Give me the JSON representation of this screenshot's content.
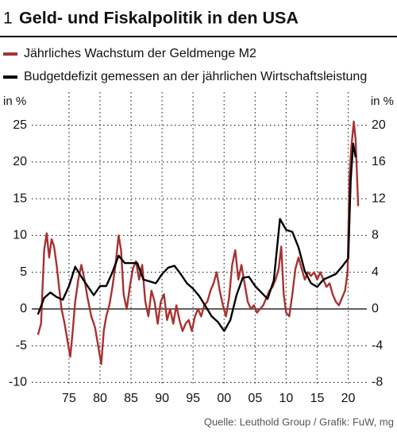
{
  "chart_data": {
    "type": "line",
    "number": "1",
    "title": "Geld- und Fiskalpolitik in den USA",
    "y_label": "in %",
    "y2_label": "in %",
    "source": "Quelle: Leuthold Group / Grafik: FuW, mg",
    "xlim": [
      1969,
      2023
    ],
    "xticks": [
      {
        "value": 1975,
        "label": "75"
      },
      {
        "value": 1980,
        "label": "80"
      },
      {
        "value": 1985,
        "label": "85"
      },
      {
        "value": 1990,
        "label": "90"
      },
      {
        "value": 1995,
        "label": "95"
      },
      {
        "value": 2000,
        "label": "00"
      },
      {
        "value": 2005,
        "label": "05"
      },
      {
        "value": 2010,
        "label": "10"
      },
      {
        "value": 2015,
        "label": "15"
      },
      {
        "value": 2020,
        "label": "20"
      }
    ],
    "ylim": [
      -10.5,
      29.5
    ],
    "yticks": [
      -10,
      -5,
      0,
      5,
      10,
      15,
      20,
      25
    ],
    "y2lim": [
      -8.4,
      23.6
    ],
    "y2ticks": [
      -8,
      -4,
      0,
      4,
      8,
      12,
      16,
      20
    ],
    "grid": true,
    "series": [
      {
        "name": "Jährliches Wachstum der Geldmenge M2",
        "color": "#a83232",
        "x": [
          1970.0,
          1970.5,
          1971.0,
          1971.4,
          1971.8,
          1972.2,
          1972.6,
          1973.0,
          1973.4,
          1973.8,
          1974.3,
          1974.8,
          1975.2,
          1975.6,
          1976.0,
          1976.5,
          1977.0,
          1977.5,
          1978.0,
          1978.6,
          1979.2,
          1979.7,
          1980.2,
          1980.6,
          1981.0,
          1981.5,
          1982.0,
          1982.5,
          1983.0,
          1983.4,
          1983.8,
          1984.3,
          1984.8,
          1985.3,
          1985.8,
          1986.3,
          1986.8,
          1987.3,
          1987.8,
          1988.3,
          1988.8,
          1989.3,
          1989.8,
          1990.3,
          1990.8,
          1991.3,
          1991.8,
          1992.3,
          1992.8,
          1993.3,
          1993.8,
          1994.3,
          1994.8,
          1995.3,
          1995.8,
          1996.3,
          1996.8,
          1997.3,
          1997.8,
          1998.3,
          1998.8,
          1999.3,
          1999.8,
          2000.3,
          2000.8,
          2001.3,
          2001.8,
          2002.3,
          2002.8,
          2003.3,
          2003.8,
          2004.3,
          2004.8,
          2005.3,
          2005.8,
          2006.3,
          2006.8,
          2007.3,
          2007.8,
          2008.3,
          2008.8,
          2009.2,
          2009.6,
          2010.0,
          2010.5,
          2011.0,
          2011.5,
          2012.0,
          2012.5,
          2013.0,
          2013.5,
          2014.0,
          2014.5,
          2015.0,
          2015.5,
          2016.0,
          2016.5,
          2017.0,
          2017.5,
          2018.0,
          2018.5,
          2019.0,
          2019.5,
          2019.9,
          2020.2,
          2020.5,
          2020.9,
          2021.2,
          2021.6
        ],
        "values": [
          -3.5,
          -2,
          8,
          10.3,
          7,
          9.5,
          8.5,
          6,
          3,
          0,
          -2,
          -4.5,
          -6.5,
          -3,
          1,
          4,
          6,
          4,
          1.5,
          -1,
          -2.5,
          -5,
          -7.5,
          -3,
          -1,
          0.5,
          3,
          6,
          10,
          8,
          2,
          0,
          3,
          5.5,
          6.5,
          4,
          6,
          1,
          -1,
          2.5,
          1,
          -2,
          1,
          2,
          -1.5,
          0,
          -2,
          0.5,
          -1.5,
          -3,
          -2,
          -1.5,
          -3,
          -1,
          0,
          -1,
          0.5,
          1,
          2.5,
          3.5,
          5,
          2.5,
          0.5,
          -1,
          1.5,
          6,
          8,
          4,
          6,
          3.5,
          1,
          0,
          0.5,
          -0.5,
          0,
          0.5,
          1.5,
          2.5,
          3,
          4,
          5.5,
          8.5,
          2,
          -0.5,
          -1,
          2,
          5.5,
          7,
          5.5,
          4,
          5,
          4.5,
          5,
          4,
          5,
          4,
          3,
          3.5,
          2,
          1,
          0.5,
          1.5,
          2.5,
          5,
          18,
          22,
          25.5,
          23,
          14
        ]
      },
      {
        "name": "Budgetdefizit gemessen an der jährlichen Wirtschaftsleistung",
        "color": "#000000",
        "axis": "y2",
        "x": [
          1970.0,
          1971.0,
          1972.0,
          1973.0,
          1974.0,
          1975.0,
          1976.0,
          1977.0,
          1978.0,
          1979.0,
          1980.0,
          1981.0,
          1982.0,
          1983.0,
          1984.0,
          1985.0,
          1986.0,
          1987.0,
          1988.0,
          1989.0,
          1990.0,
          1991.0,
          1992.0,
          1993.0,
          1994.0,
          1995.0,
          1996.0,
          1997.0,
          1998.0,
          1999.0,
          2000.0,
          2001.0,
          2002.0,
          2003.0,
          2004.0,
          2005.0,
          2006.0,
          2007.0,
          2008.0,
          2009.0,
          2010.0,
          2011.0,
          2012.0,
          2013.0,
          2014.0,
          2015.0,
          2016.0,
          2017.0,
          2018.0,
          2019.0,
          2020.0,
          2020.4,
          2020.8,
          2021.2
        ],
        "values": [
          -0.6,
          1.2,
          1.8,
          1.3,
          1.0,
          2.5,
          4.6,
          3.5,
          2.5,
          1.5,
          2.5,
          2.5,
          4.0,
          5.8,
          5.0,
          5.0,
          5.0,
          3.2,
          3.0,
          2.8,
          3.8,
          4.5,
          4.7,
          3.8,
          2.8,
          2.2,
          1.4,
          0.3,
          -0.8,
          -1.4,
          -2.4,
          -1.2,
          1.5,
          3.4,
          3.5,
          2.5,
          1.8,
          1.1,
          3.1,
          9.8,
          8.6,
          8.4,
          6.7,
          4.1,
          2.8,
          2.4,
          3.2,
          3.5,
          3.8,
          4.6,
          5.5,
          14,
          18,
          16.5
        ]
      }
    ]
  }
}
